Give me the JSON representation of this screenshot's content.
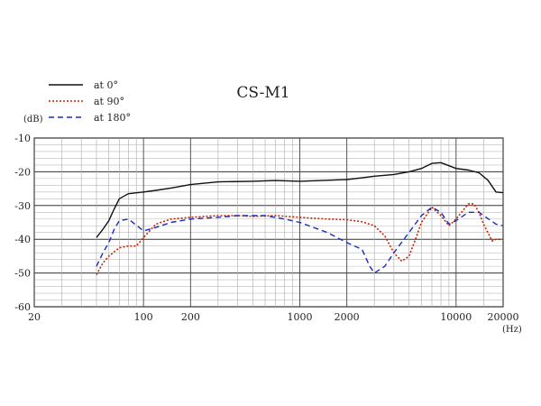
{
  "chart_data": {
    "type": "line",
    "title": "CS-M1",
    "ylabel": "(dB)",
    "xlabel": "(Hz)",
    "xscale": "log",
    "xlim": [
      20,
      20000
    ],
    "ylim": [
      -60,
      -10
    ],
    "grid": true,
    "legend_position": "top-left",
    "x_tick_labels": [
      "20",
      "100",
      "200",
      "1000",
      "2000",
      "10000",
      "20000"
    ],
    "x_tick_values": [
      20,
      100,
      200,
      1000,
      2000,
      10000,
      20000
    ],
    "y_tick_labels": [
      "-10",
      "-20",
      "-30",
      "-40",
      "-50",
      "-60"
    ],
    "y_tick_values": [
      -10,
      -20,
      -30,
      -40,
      -50,
      -60
    ],
    "series": [
      {
        "name": "at 0°",
        "color": "#111111",
        "dash": "solid",
        "points": [
          [
            50,
            -39.5
          ],
          [
            55,
            -37
          ],
          [
            60,
            -34.5
          ],
          [
            65,
            -31
          ],
          [
            70,
            -28
          ],
          [
            80,
            -26.5
          ],
          [
            100,
            -26
          ],
          [
            120,
            -25.5
          ],
          [
            150,
            -24.8
          ],
          [
            200,
            -23.8
          ],
          [
            300,
            -23
          ],
          [
            500,
            -22.8
          ],
          [
            700,
            -22.6
          ],
          [
            1000,
            -22.8
          ],
          [
            1500,
            -22.5
          ],
          [
            2000,
            -22.3
          ],
          [
            2500,
            -21.8
          ],
          [
            3000,
            -21.3
          ],
          [
            4000,
            -20.8
          ],
          [
            5000,
            -20
          ],
          [
            6000,
            -19
          ],
          [
            7000,
            -17.5
          ],
          [
            8000,
            -17.3
          ],
          [
            9000,
            -18.2
          ],
          [
            10000,
            -19
          ],
          [
            12000,
            -19.5
          ],
          [
            14000,
            -20.3
          ],
          [
            16000,
            -22.5
          ],
          [
            18000,
            -26
          ],
          [
            20000,
            -26.2
          ]
        ]
      },
      {
        "name": "at 90°",
        "color": "#cc2200",
        "dash": "dot",
        "points": [
          [
            50,
            -50.5
          ],
          [
            55,
            -47
          ],
          [
            60,
            -45
          ],
          [
            70,
            -42.5
          ],
          [
            80,
            -42
          ],
          [
            90,
            -42
          ],
          [
            100,
            -39.5
          ],
          [
            120,
            -35.5
          ],
          [
            150,
            -34
          ],
          [
            200,
            -33.5
          ],
          [
            300,
            -33
          ],
          [
            400,
            -33
          ],
          [
            500,
            -33.2
          ],
          [
            700,
            -33
          ],
          [
            1000,
            -33.5
          ],
          [
            1500,
            -34
          ],
          [
            2000,
            -34.2
          ],
          [
            2500,
            -34.8
          ],
          [
            3000,
            -36
          ],
          [
            3500,
            -39
          ],
          [
            4000,
            -44
          ],
          [
            4500,
            -46.5
          ],
          [
            5000,
            -45
          ],
          [
            5500,
            -40
          ],
          [
            6000,
            -35
          ],
          [
            7000,
            -30.5
          ],
          [
            8000,
            -33
          ],
          [
            9000,
            -36
          ],
          [
            10000,
            -34
          ],
          [
            12000,
            -29.5
          ],
          [
            13000,
            -29.5
          ],
          [
            14000,
            -32
          ],
          [
            15000,
            -35.5
          ],
          [
            17000,
            -40.5
          ],
          [
            18000,
            -40
          ],
          [
            20000,
            -40
          ]
        ]
      },
      {
        "name": "at 180°",
        "color": "#1a2dbb",
        "dash": "dash",
        "points": [
          [
            50,
            -48
          ],
          [
            55,
            -44
          ],
          [
            60,
            -41
          ],
          [
            65,
            -37
          ],
          [
            70,
            -34.5
          ],
          [
            80,
            -34
          ],
          [
            100,
            -37.5
          ],
          [
            120,
            -36.5
          ],
          [
            150,
            -35
          ],
          [
            200,
            -34
          ],
          [
            300,
            -33.5
          ],
          [
            400,
            -33
          ],
          [
            600,
            -33
          ],
          [
            800,
            -34
          ],
          [
            1000,
            -35
          ],
          [
            1500,
            -38
          ],
          [
            2000,
            -41
          ],
          [
            2500,
            -43
          ],
          [
            2800,
            -48
          ],
          [
            3000,
            -50
          ],
          [
            3500,
            -48
          ],
          [
            4000,
            -44
          ],
          [
            5000,
            -38
          ],
          [
            6000,
            -33
          ],
          [
            7000,
            -30.5
          ],
          [
            8000,
            -32
          ],
          [
            9000,
            -35.5
          ],
          [
            10000,
            -34.5
          ],
          [
            12000,
            -32
          ],
          [
            14000,
            -32
          ],
          [
            15000,
            -33
          ],
          [
            18000,
            -35.5
          ],
          [
            20000,
            -36
          ]
        ]
      }
    ]
  }
}
